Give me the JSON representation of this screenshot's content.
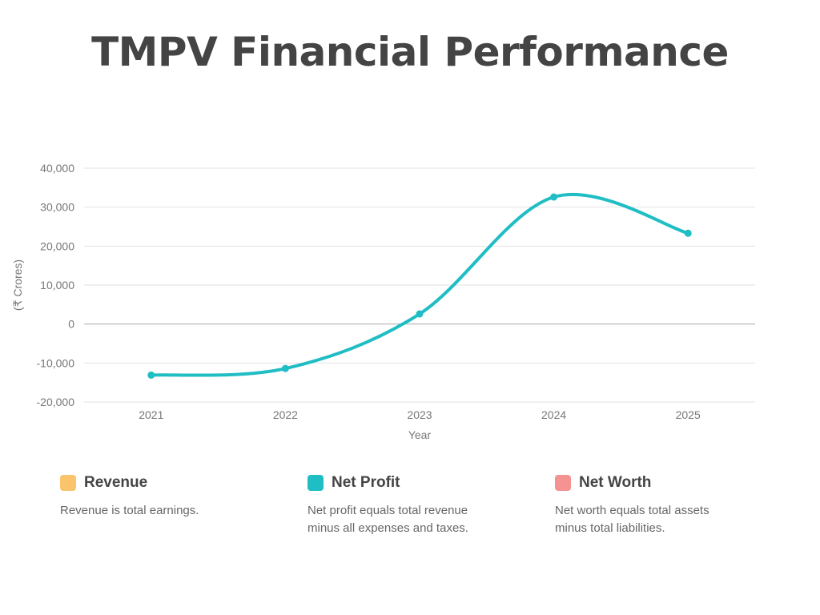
{
  "title": "TMPV Financial Performance",
  "chart_data": {
    "type": "line",
    "title": "TMPV Financial Performance",
    "xlabel": "Year",
    "ylabel": "(₹ Crores)",
    "categories": [
      "2021",
      "2022",
      "2023",
      "2024",
      "2025"
    ],
    "series": [
      {
        "name": "Net Profit",
        "color": "#1fbdc4",
        "values": [
          -13100,
          -11400,
          2600,
          32600,
          23300
        ]
      }
    ],
    "ylim": [
      -20000,
      40000
    ],
    "yticks": [
      -20000,
      -10000,
      0,
      10000,
      20000,
      30000,
      40000
    ],
    "ytick_labels": [
      "-20,000",
      "-10,000",
      "0",
      "10,000",
      "20,000",
      "30,000",
      "40,000"
    ],
    "grid": true,
    "smooth": true
  },
  "legend": [
    {
      "label": "Revenue",
      "color": "#f9c46b",
      "desc": "Revenue is total earnings."
    },
    {
      "label": "Net Profit",
      "color": "#1fbdc4",
      "desc": "Net profit equals total revenue minus all expenses and taxes."
    },
    {
      "label": "Net Worth",
      "color": "#f59393",
      "desc": "Net worth equals total assets minus total liabilities."
    }
  ]
}
